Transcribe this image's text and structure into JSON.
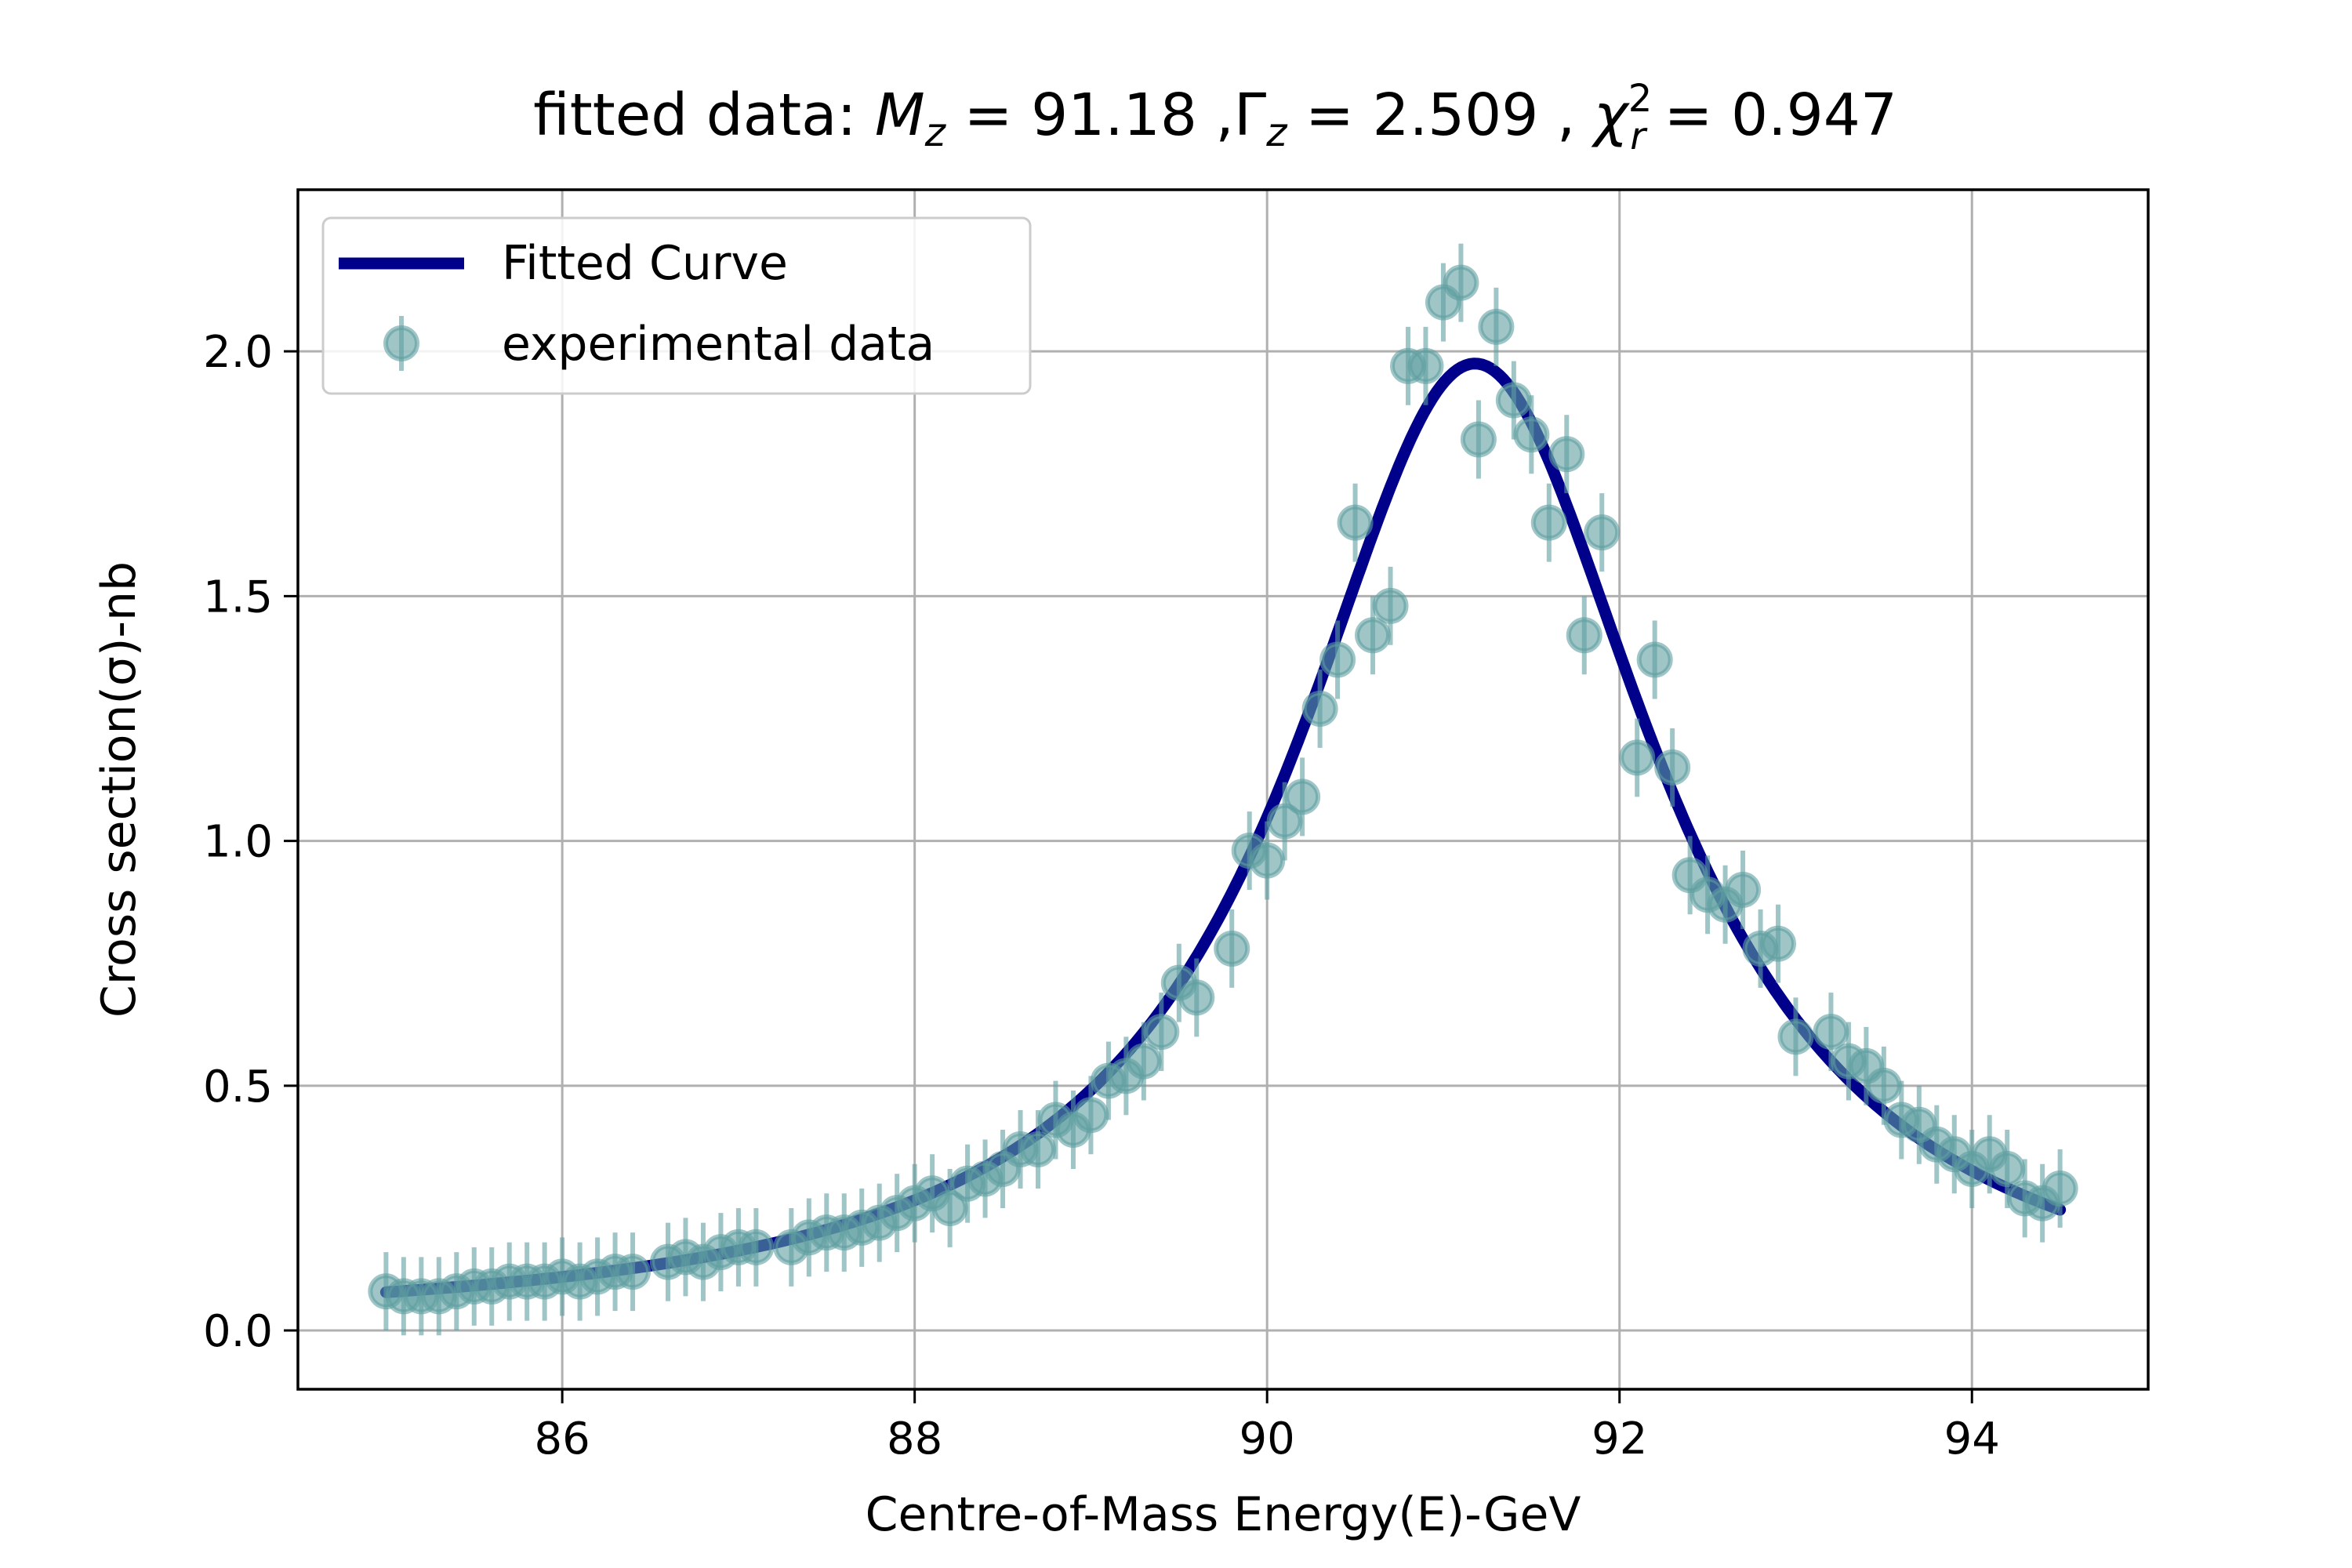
{
  "chart_data": {
    "type": "scatter",
    "title": {
      "prefix": "fitted data: ",
      "m_symbol": "M",
      "m_sub": "z",
      "m_value": " = 91.18 ,",
      "g_symbol": "Γ",
      "g_sub": "z",
      "g_value": " = 2.509 , ",
      "c_symbol": "χ",
      "c_sup": "2",
      "c_sub": "r",
      "c_value": " = 0.947"
    },
    "xlabel": "Centre-of-Mass Energy(E)-GeV",
    "ylabel": "Cross section(σ)-nb",
    "xlim": [
      84.5,
      95.0
    ],
    "ylim": [
      -0.12,
      2.33
    ],
    "xticks": [
      86,
      88,
      90,
      92,
      94
    ],
    "xtick_labels": [
      "86",
      "88",
      "90",
      "92",
      "94"
    ],
    "yticks": [
      0.0,
      0.5,
      1.0,
      1.5,
      2.0
    ],
    "ytick_labels": [
      "0.0",
      "0.5",
      "1.0",
      "1.5",
      "2.0"
    ],
    "grid": true,
    "legend_position": "top-left",
    "legend": [
      "Fitted Curve",
      "experimental data"
    ],
    "colors": {
      "curve": "#00008b",
      "points": "#5f9ea0",
      "grid": "#b0b0b0"
    },
    "fit": {
      "type": "lorentzian",
      "Mz": 91.18,
      "Gz": 2.509,
      "peak": 1.975,
      "x_range": [
        85.0,
        94.5
      ]
    },
    "series": [
      {
        "name": "experimental data",
        "x": [
          85.0,
          85.1,
          85.2,
          85.3,
          85.4,
          85.5,
          85.6,
          85.7,
          85.8,
          85.9,
          86.0,
          86.1,
          86.2,
          86.3,
          86.4,
          86.6,
          86.7,
          86.8,
          86.9,
          87.0,
          87.1,
          87.3,
          87.4,
          87.5,
          87.6,
          87.7,
          87.8,
          87.9,
          88.0,
          88.1,
          88.2,
          88.3,
          88.4,
          88.5,
          88.6,
          88.7,
          88.8,
          88.9,
          89.0,
          89.1,
          89.2,
          89.3,
          89.4,
          89.5,
          89.6,
          89.8,
          89.9,
          90.0,
          90.1,
          90.2,
          90.3,
          90.4,
          90.5,
          90.6,
          90.7,
          90.8,
          90.9,
          91.0,
          91.1,
          91.2,
          91.3,
          91.4,
          91.5,
          91.6,
          91.7,
          91.8,
          91.9,
          92.1,
          92.2,
          92.3,
          92.4,
          92.5,
          92.6,
          92.7,
          92.8,
          92.9,
          93.0,
          93.2,
          93.3,
          93.4,
          93.5,
          93.6,
          93.7,
          93.8,
          93.9,
          94.0,
          94.1,
          94.2,
          94.3,
          94.4,
          94.5
        ],
        "y": [
          0.08,
          0.07,
          0.07,
          0.07,
          0.08,
          0.09,
          0.09,
          0.1,
          0.1,
          0.1,
          0.11,
          0.1,
          0.11,
          0.12,
          0.12,
          0.14,
          0.15,
          0.14,
          0.16,
          0.17,
          0.17,
          0.17,
          0.19,
          0.2,
          0.2,
          0.21,
          0.22,
          0.24,
          0.26,
          0.28,
          0.25,
          0.3,
          0.31,
          0.33,
          0.37,
          0.37,
          0.43,
          0.41,
          0.44,
          0.51,
          0.52,
          0.55,
          0.61,
          0.71,
          0.68,
          0.78,
          0.98,
          0.96,
          1.04,
          1.09,
          1.27,
          1.37,
          1.65,
          1.42,
          1.48,
          1.97,
          1.97,
          2.1,
          2.14,
          1.82,
          2.05,
          1.9,
          1.83,
          1.65,
          1.79,
          1.42,
          1.63,
          1.17,
          1.37,
          1.15,
          0.93,
          0.89,
          0.87,
          0.9,
          0.78,
          0.79,
          0.6,
          0.61,
          0.55,
          0.54,
          0.5,
          0.43,
          0.42,
          0.38,
          0.36,
          0.33,
          0.36,
          0.33,
          0.27,
          0.26,
          0.29
        ],
        "yerr": 0.08
      }
    ]
  }
}
